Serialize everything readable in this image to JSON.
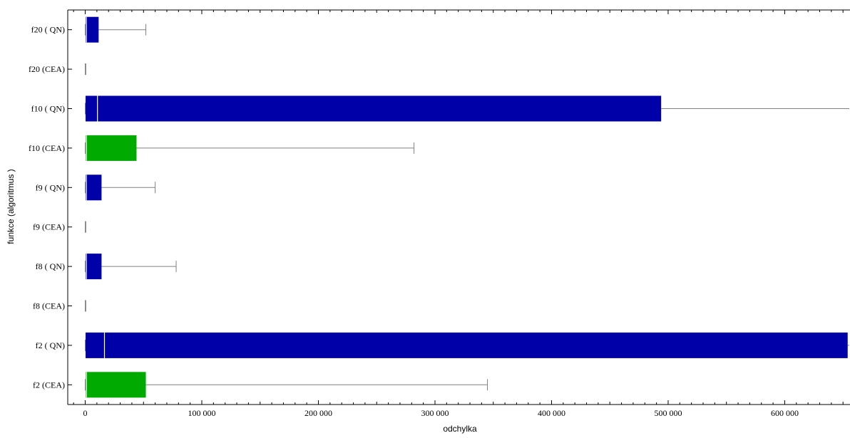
{
  "chart_data": {
    "type": "boxplot",
    "orientation": "horizontal",
    "title": "",
    "xlabel": "odchylka",
    "ylabel": "funkce (algoritmus )",
    "xlim": [
      -15000,
      656000
    ],
    "x_ticks": [
      {
        "value": 0,
        "label": "0"
      },
      {
        "value": 100000,
        "label": "100 000"
      },
      {
        "value": 200000,
        "label": "200 000"
      },
      {
        "value": 300000,
        "label": "300 000"
      },
      {
        "value": 400000,
        "label": "400 000"
      },
      {
        "value": 500000,
        "label": "500 000"
      },
      {
        "value": 600000,
        "label": "600 000"
      }
    ],
    "grid": false,
    "colors": {
      "CEA": "#00aa00",
      "QN": "#0000a8",
      "whisker": "#808080",
      "median": "#ffffff",
      "axis": "#000000"
    },
    "categories": [
      "f2 (CEA)",
      "f2 ( QN)",
      "f8 (CEA)",
      "f8 ( QN)",
      "f9 (CEA)",
      "f9 ( QN)",
      "f10 (CEA)",
      "f10 ( QN)",
      "f20 (CEA)",
      "f20 ( QN)"
    ],
    "boxes": [
      {
        "label": "f2 (CEA)",
        "algorithm": "CEA",
        "min": 0,
        "q1": 300,
        "median": 1000,
        "q3": 52000,
        "max": 345000
      },
      {
        "label": "f2 ( QN)",
        "algorithm": "QN",
        "min": 0,
        "q1": 300,
        "median": 16500,
        "q3": 654000,
        "max": 656000
      },
      {
        "label": "f8 (CEA)",
        "algorithm": "CEA",
        "min": 0,
        "q1": 0,
        "median": 0,
        "q3": 200,
        "max": 500
      },
      {
        "label": "f8 ( QN)",
        "algorithm": "QN",
        "min": 0,
        "q1": 300,
        "median": 1000,
        "q3": 14000,
        "max": 78000
      },
      {
        "label": "f9 (CEA)",
        "algorithm": "CEA",
        "min": 0,
        "q1": 0,
        "median": 0,
        "q3": 200,
        "max": 500
      },
      {
        "label": "f9 ( QN)",
        "algorithm": "QN",
        "min": 0,
        "q1": 300,
        "median": 1000,
        "q3": 14000,
        "max": 60000
      },
      {
        "label": "f10 (CEA)",
        "algorithm": "CEA",
        "min": 0,
        "q1": 300,
        "median": 1000,
        "q3": 44000,
        "max": 282000
      },
      {
        "label": "f10 ( QN)",
        "algorithm": "QN",
        "min": 0,
        "q1": 300,
        "median": 10500,
        "q3": 494000,
        "max": 656000
      },
      {
        "label": "f20 (CEA)",
        "algorithm": "CEA",
        "min": 0,
        "q1": 0,
        "median": 0,
        "q3": 200,
        "max": 500
      },
      {
        "label": "f20 ( QN)",
        "algorithm": "QN",
        "min": 0,
        "q1": 300,
        "median": 1000,
        "q3": 11500,
        "max": 52000
      }
    ]
  }
}
